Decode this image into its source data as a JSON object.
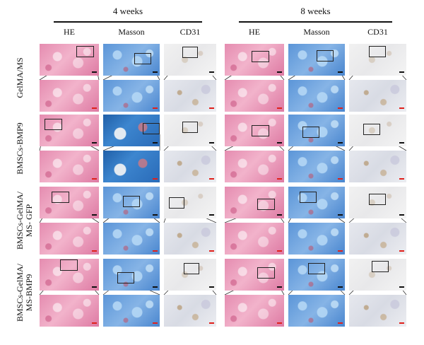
{
  "figure": {
    "groups": [
      {
        "title": "4 weeks",
        "columns": [
          "HE",
          "Masson",
          "CD31"
        ]
      },
      {
        "title": "8 weeks",
        "columns": [
          "HE",
          "Masson",
          "CD31"
        ]
      }
    ],
    "rows": [
      {
        "label": "GelMA/MS"
      },
      {
        "label": "BMSCs-BMP9"
      },
      {
        "label": "BMSCs-GelMA/\nMS- GFP"
      },
      {
        "label": "BMSCs-GelMA/\nMS-BMP9"
      }
    ],
    "stains": [
      "he",
      "masson",
      "cd31"
    ],
    "colors": {
      "he_pink": "#e58cb0",
      "masson_blue": "#5b95d8",
      "cd31_gray": "#ececee",
      "scale_bar_low": "#111111",
      "scale_bar_high": "#e0201b"
    }
  }
}
